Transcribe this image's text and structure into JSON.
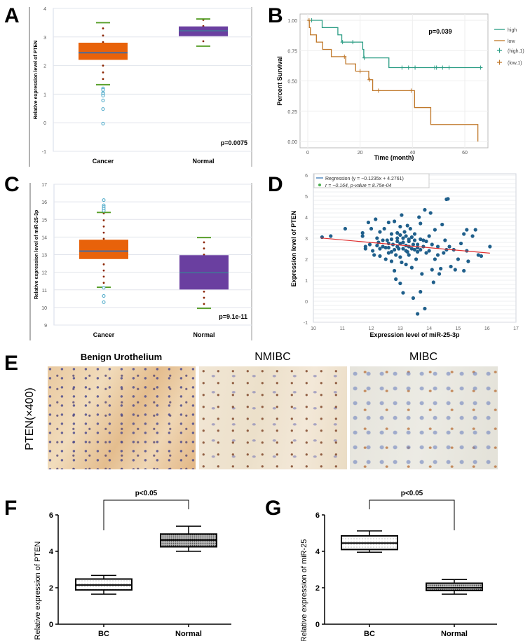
{
  "panel_labels": {
    "a": "A",
    "b": "B",
    "c": "C",
    "d": "D",
    "e": "E",
    "f": "F",
    "g": "G"
  },
  "panel_e": {
    "titles": [
      "Benign Urothelium",
      "NMIBC",
      "MIBC"
    ],
    "row_label": "PTEN(×400)"
  },
  "chart_data": [
    {
      "id": "A",
      "type": "box",
      "ylabel": "Relative expression level of PTEN",
      "xlabel": "",
      "ylim": [
        -1,
        4
      ],
      "yticks": [
        -1,
        0,
        1,
        2,
        3,
        4
      ],
      "annotation": "p=0.0075",
      "grid": true,
      "categories": [
        "Cancer",
        "Normal"
      ],
      "colors": {
        "Cancer": "#e8620a",
        "Normal": "#6a3fa0",
        "median": "#4a6a9a",
        "whisker": "#5aa02c",
        "points": "#8b2500",
        "outliers": "#4aa8c8"
      },
      "boxes": [
        {
          "q1": 2.2,
          "median": 2.45,
          "q3": 2.8,
          "whisker_low": 1.33,
          "whisker_high": 3.5,
          "points": [
            3.3,
            3.05,
            2.82,
            2.0,
            1.76,
            1.53
          ],
          "outliers": [
            1.2,
            1.15,
            1.05,
            1.0,
            0.95,
            0.78,
            0.48,
            -0.03
          ]
        },
        {
          "q1": 3.03,
          "median": 3.22,
          "q3": 3.37,
          "whisker_low": 2.68,
          "whisker_high": 3.63,
          "points": [
            3.6,
            3.38,
            2.85
          ],
          "outliers": []
        }
      ]
    },
    {
      "id": "B",
      "type": "line",
      "subtype": "kaplan-meier",
      "xlabel": "Time (month)",
      "ylabel": "Percent Survival",
      "xlim": [
        -2,
        69
      ],
      "ylim": [
        -0.04,
        1.04
      ],
      "xticks": [
        0,
        20,
        40,
        60
      ],
      "yticks": [
        "0.00",
        "0.25",
        "0.50",
        "0.75",
        "1.00"
      ],
      "annotation": "p=0.039",
      "legend": "right",
      "legend_entries": [
        "high",
        "low",
        "(high,1)",
        "(low,1)"
      ],
      "series": [
        {
          "name": "high",
          "color": "#2a9d84",
          "steps": [
            [
              0,
              1.0
            ],
            [
              5.5,
              0.94
            ],
            [
              11.5,
              0.88
            ],
            [
              13,
              0.82
            ],
            [
              21,
              0.76
            ],
            [
              21.4,
              0.69
            ],
            [
              31,
              0.61
            ]
          ],
          "end": 66,
          "censored": [
            [
              1.5,
              1.0
            ],
            [
              13.3,
              0.82
            ],
            [
              17.2,
              0.82
            ],
            [
              21.6,
              0.69
            ],
            [
              36,
              0.61
            ],
            [
              38.5,
              0.61
            ],
            [
              41,
              0.61
            ],
            [
              48.5,
              0.61
            ],
            [
              49.2,
              0.61
            ],
            [
              51.5,
              0.61
            ],
            [
              54,
              0.61
            ],
            [
              66,
              0.61
            ]
          ]
        },
        {
          "name": "low",
          "color": "#c0782a",
          "steps": [
            [
              0,
              1.0
            ],
            [
              0.6,
              0.94
            ],
            [
              1,
              0.88
            ],
            [
              3.3,
              0.82
            ],
            [
              5.7,
              0.76
            ],
            [
              9,
              0.7
            ],
            [
              14.5,
              0.64
            ],
            [
              18.3,
              0.58
            ],
            [
              23.3,
              0.51
            ],
            [
              24.8,
              0.42
            ],
            [
              40.8,
              0.28
            ],
            [
              47,
              0.14
            ],
            [
              65,
              0.0
            ]
          ],
          "end": 65,
          "censored": [
            [
              0.5,
              1.0
            ],
            [
              14,
              0.7
            ],
            [
              20,
              0.58
            ],
            [
              23.6,
              0.51
            ],
            [
              27,
              0.42
            ],
            [
              39.5,
              0.42
            ]
          ]
        }
      ]
    },
    {
      "id": "C",
      "type": "box",
      "ylabel": "Relative expression level of miR-25-3p",
      "xlabel": "",
      "ylim": [
        9,
        17
      ],
      "yticks": [
        9,
        10,
        11,
        12,
        13,
        14,
        15,
        16,
        17
      ],
      "annotation": "p=9.1e-11",
      "grid": true,
      "categories": [
        "Cancer",
        "Normal"
      ],
      "colors": {
        "Cancer": "#e8620a",
        "Normal": "#6a3fa0",
        "median": "#4a6a9a",
        "whisker": "#5aa02c",
        "points": "#8b2500",
        "outliers": "#4aa8c8"
      },
      "boxes": [
        {
          "q1": 12.75,
          "median": 13.2,
          "q3": 13.85,
          "whisker_low": 11.15,
          "whisker_high": 15.4,
          "points": [
            15.35,
            14.95,
            14.6,
            14.25,
            13.9,
            12.45,
            12.1,
            11.75,
            11.4
          ],
          "outliers": [
            16.1,
            15.8,
            15.7,
            15.6,
            15.5,
            11.12,
            10.65,
            10.3
          ]
        },
        {
          "q1": 11.02,
          "median": 11.98,
          "q3": 12.97,
          "whisker_low": 9.95,
          "whisker_high": 13.97,
          "points": [
            13.7,
            13.35,
            13.0,
            10.9,
            10.55,
            10.2
          ],
          "outliers": []
        }
      ]
    },
    {
      "id": "D",
      "type": "scatter",
      "xlabel": "Expression level of miR-25-3p",
      "ylabel": "Expression level of PTEN",
      "xlim": [
        10,
        17
      ],
      "ylim": [
        -1,
        6
      ],
      "xticks": [
        10,
        11,
        12,
        13,
        14,
        15,
        16,
        17
      ],
      "yticks": [
        -1,
        0,
        1,
        2,
        3,
        4,
        5,
        6
      ],
      "grid": true,
      "legend": "top-left",
      "legend_entries": [
        "Regression (y = −0.1235x + 4.2761)",
        "r = −0.164, p-value = 8.75e-04"
      ],
      "regression": {
        "slope": -0.1235,
        "intercept": 4.2761,
        "x_range": [
          10.25,
          16.1
        ],
        "color": "#e03030"
      },
      "point_color": "#1f5f8b",
      "points": [
        [
          10.3,
          3.05
        ],
        [
          10.6,
          3.1
        ],
        [
          11.1,
          3.45
        ],
        [
          11.7,
          3.25
        ],
        [
          11.7,
          3.1
        ],
        [
          11.8,
          2.6
        ],
        [
          11.8,
          2.5
        ],
        [
          11.9,
          3.75
        ],
        [
          11.95,
          2.7
        ],
        [
          12.0,
          3.45
        ],
        [
          12.05,
          2.4
        ],
        [
          12.1,
          2.2
        ],
        [
          12.15,
          3.9
        ],
        [
          12.2,
          3.0
        ],
        [
          12.25,
          2.8
        ],
        [
          12.3,
          2.15
        ],
        [
          12.3,
          3.3
        ],
        [
          12.4,
          2.6
        ],
        [
          12.45,
          3.45
        ],
        [
          12.5,
          2.0
        ],
        [
          12.55,
          2.9
        ],
        [
          12.6,
          3.75
        ],
        [
          12.6,
          2.3
        ],
        [
          12.7,
          1.9
        ],
        [
          12.7,
          3.2
        ],
        [
          12.75,
          2.7
        ],
        [
          12.8,
          1.45
        ],
        [
          12.8,
          3.8
        ],
        [
          12.85,
          2.2
        ],
        [
          12.85,
          1.05
        ],
        [
          12.9,
          3.0
        ],
        [
          12.95,
          2.5
        ],
        [
          13.0,
          3.55
        ],
        [
          13.0,
          2.1
        ],
        [
          13.0,
          0.85
        ],
        [
          13.05,
          4.1
        ],
        [
          13.05,
          1.85
        ],
        [
          13.1,
          2.8
        ],
        [
          13.1,
          0.4
        ],
        [
          13.15,
          3.3
        ],
        [
          13.2,
          2.4
        ],
        [
          13.2,
          1.75
        ],
        [
          13.25,
          3.6
        ],
        [
          13.3,
          2.95
        ],
        [
          13.3,
          2.2
        ],
        [
          13.35,
          3.45
        ],
        [
          13.4,
          1.6
        ],
        [
          13.45,
          2.7
        ],
        [
          13.45,
          0.15
        ],
        [
          13.5,
          3.2
        ],
        [
          13.55,
          2.0
        ],
        [
          13.6,
          -0.6
        ],
        [
          13.6,
          2.55
        ],
        [
          13.65,
          4.0
        ],
        [
          13.7,
          3.7
        ],
        [
          13.7,
          0.45
        ],
        [
          13.75,
          1.3
        ],
        [
          13.8,
          2.9
        ],
        [
          13.85,
          4.35
        ],
        [
          13.85,
          -0.35
        ],
        [
          13.9,
          2.3
        ],
        [
          14.0,
          3.1
        ],
        [
          14.05,
          4.2
        ],
        [
          14.1,
          1.5
        ],
        [
          14.15,
          0.9
        ],
        [
          14.2,
          3.4
        ],
        [
          14.2,
          2.0
        ],
        [
          14.3,
          2.6
        ],
        [
          14.35,
          1.3
        ],
        [
          14.4,
          1.55
        ],
        [
          14.45,
          3.65
        ],
        [
          14.5,
          2.3
        ],
        [
          14.55,
          2.9
        ],
        [
          14.6,
          4.85
        ],
        [
          14.65,
          4.87
        ],
        [
          14.7,
          2.6
        ],
        [
          14.75,
          1.65
        ],
        [
          14.85,
          2.45
        ],
        [
          14.9,
          1.5
        ],
        [
          15.0,
          2.0
        ],
        [
          15.1,
          2.75
        ],
        [
          15.2,
          1.45
        ],
        [
          15.2,
          3.2
        ],
        [
          15.3,
          2.4
        ],
        [
          15.3,
          3.4
        ],
        [
          15.35,
          1.9
        ],
        [
          15.5,
          3.1
        ],
        [
          15.6,
          3.4
        ],
        [
          15.7,
          2.2
        ],
        [
          15.8,
          2.15
        ],
        [
          16.1,
          2.6
        ],
        [
          12.6,
          2.75
        ],
        [
          12.7,
          2.95
        ],
        [
          12.9,
          2.6
        ],
        [
          13.0,
          2.75
        ],
        [
          13.1,
          3.0
        ],
        [
          13.2,
          2.65
        ],
        [
          13.3,
          2.85
        ],
        [
          13.4,
          2.5
        ],
        [
          13.5,
          2.9
        ],
        [
          13.6,
          2.7
        ],
        [
          13.2,
          3.1
        ],
        [
          12.8,
          2.45
        ],
        [
          13.4,
          3.05
        ],
        [
          12.9,
          3.25
        ],
        [
          13.7,
          2.45
        ],
        [
          12.5,
          2.55
        ],
        [
          13.8,
          2.6
        ],
        [
          14.0,
          2.4
        ],
        [
          12.4,
          2.9
        ],
        [
          13.9,
          2.85
        ],
        [
          12.7,
          2.35
        ],
        [
          13.6,
          2.35
        ],
        [
          13.1,
          2.5
        ],
        [
          12.3,
          2.5
        ],
        [
          14.1,
          2.7
        ],
        [
          12.9,
          2.85
        ],
        [
          13.3,
          2.6
        ],
        [
          13.0,
          3.15
        ],
        [
          12.6,
          2.55
        ],
        [
          13.5,
          2.45
        ],
        [
          13.7,
          2.95
        ],
        [
          14.3,
          2.2
        ],
        [
          14.6,
          2.45
        ],
        [
          12.2,
          2.65
        ],
        [
          13.25,
          2.35
        ]
      ]
    },
    {
      "id": "F",
      "type": "box",
      "ylabel": "Relative expression of PTEN",
      "ylim": [
        0,
        6
      ],
      "yticks": [
        0,
        2,
        4,
        6
      ],
      "categories": [
        "BC",
        "Normal"
      ],
      "annotation": "p<0.05",
      "boxes": [
        {
          "q1": 1.88,
          "median": 2.15,
          "q3": 2.48,
          "whisker_low": 1.65,
          "whisker_high": 2.68,
          "pattern": "light"
        },
        {
          "q1": 4.25,
          "median": 4.62,
          "q3": 4.95,
          "whisker_low": 4.0,
          "whisker_high": 5.38,
          "pattern": "dark"
        }
      ]
    },
    {
      "id": "G",
      "type": "box",
      "ylabel": "Relative expression of miR-25",
      "ylim": [
        0,
        6
      ],
      "yticks": [
        0,
        2,
        4,
        6
      ],
      "categories": [
        "BC",
        "Normal"
      ],
      "annotation": "p<0.05",
      "boxes": [
        {
          "q1": 4.1,
          "median": 4.45,
          "q3": 4.85,
          "whisker_low": 3.95,
          "whisker_high": 5.12,
          "pattern": "light"
        },
        {
          "q1": 1.85,
          "median": 2.0,
          "q3": 2.25,
          "whisker_low": 1.65,
          "whisker_high": 2.45,
          "pattern": "dark"
        }
      ]
    }
  ]
}
